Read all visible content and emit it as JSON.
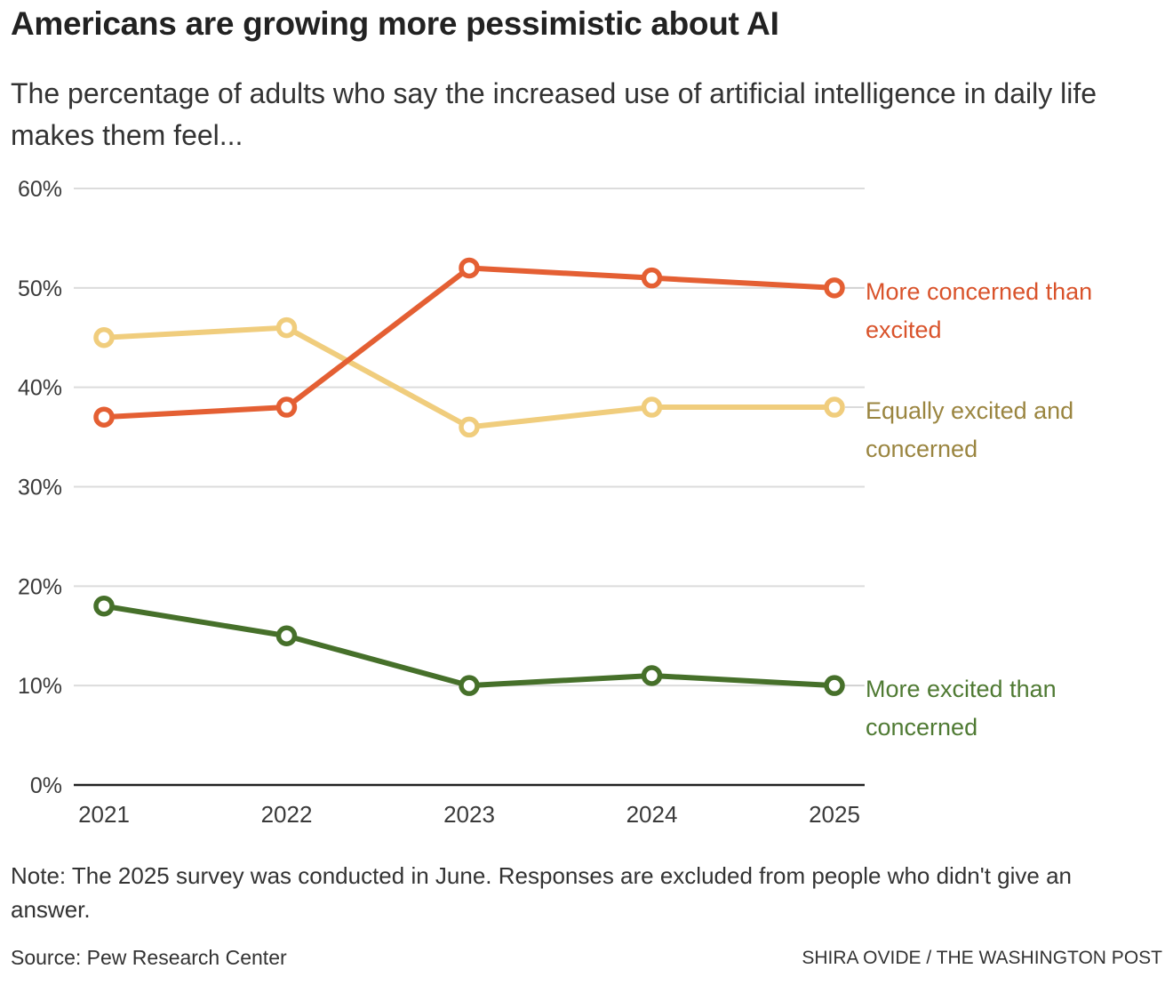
{
  "header": {
    "title": "Americans are growing more pessimistic about AI",
    "subtitle": "The percentage of adults who say the increased use of artificial intelligence in daily life makes them feel..."
  },
  "footer": {
    "note": "Note: The 2025 survey was conducted in June. Responses are excluded from people who didn't give an answer.",
    "source": "Source: Pew Research Center",
    "credit": "SHIRA OVIDE / THE WASHINGTON POST"
  },
  "chart_data": {
    "type": "line",
    "title": "Americans are growing more pessimistic about AI",
    "subtitle": "The percentage of adults who say the increased use of artificial intelligence in daily life makes them feel...",
    "xlabel": "",
    "ylabel": "",
    "x": [
      "2021",
      "2022",
      "2023",
      "2024",
      "2025"
    ],
    "ylim": [
      0,
      60
    ],
    "yticks": [
      0,
      10,
      20,
      30,
      40,
      50,
      60
    ],
    "ytick_labels": [
      "0%",
      "10%",
      "20%",
      "30%",
      "40%",
      "50%",
      "60%"
    ],
    "grid": true,
    "legend": "direct labels at right end of lines",
    "series": [
      {
        "name": "More concerned than excited",
        "label_lines": [
          "More concerned than",
          "excited"
        ],
        "color": "#e45f33",
        "label_color": "#d9532b",
        "values": [
          37,
          38,
          52,
          51,
          50
        ]
      },
      {
        "name": "Equally excited and concerned",
        "label_lines": [
          "Equally excited and",
          "concerned"
        ],
        "color": "#f0cd7d",
        "label_color": "#9a8540",
        "values": [
          45,
          46,
          36,
          38,
          38
        ]
      },
      {
        "name": "More excited than concerned",
        "label_lines": [
          "More excited than",
          "concerned"
        ],
        "color": "#46702a",
        "label_color": "#4f7a33",
        "values": [
          18,
          15,
          10,
          11,
          10
        ]
      }
    ]
  }
}
